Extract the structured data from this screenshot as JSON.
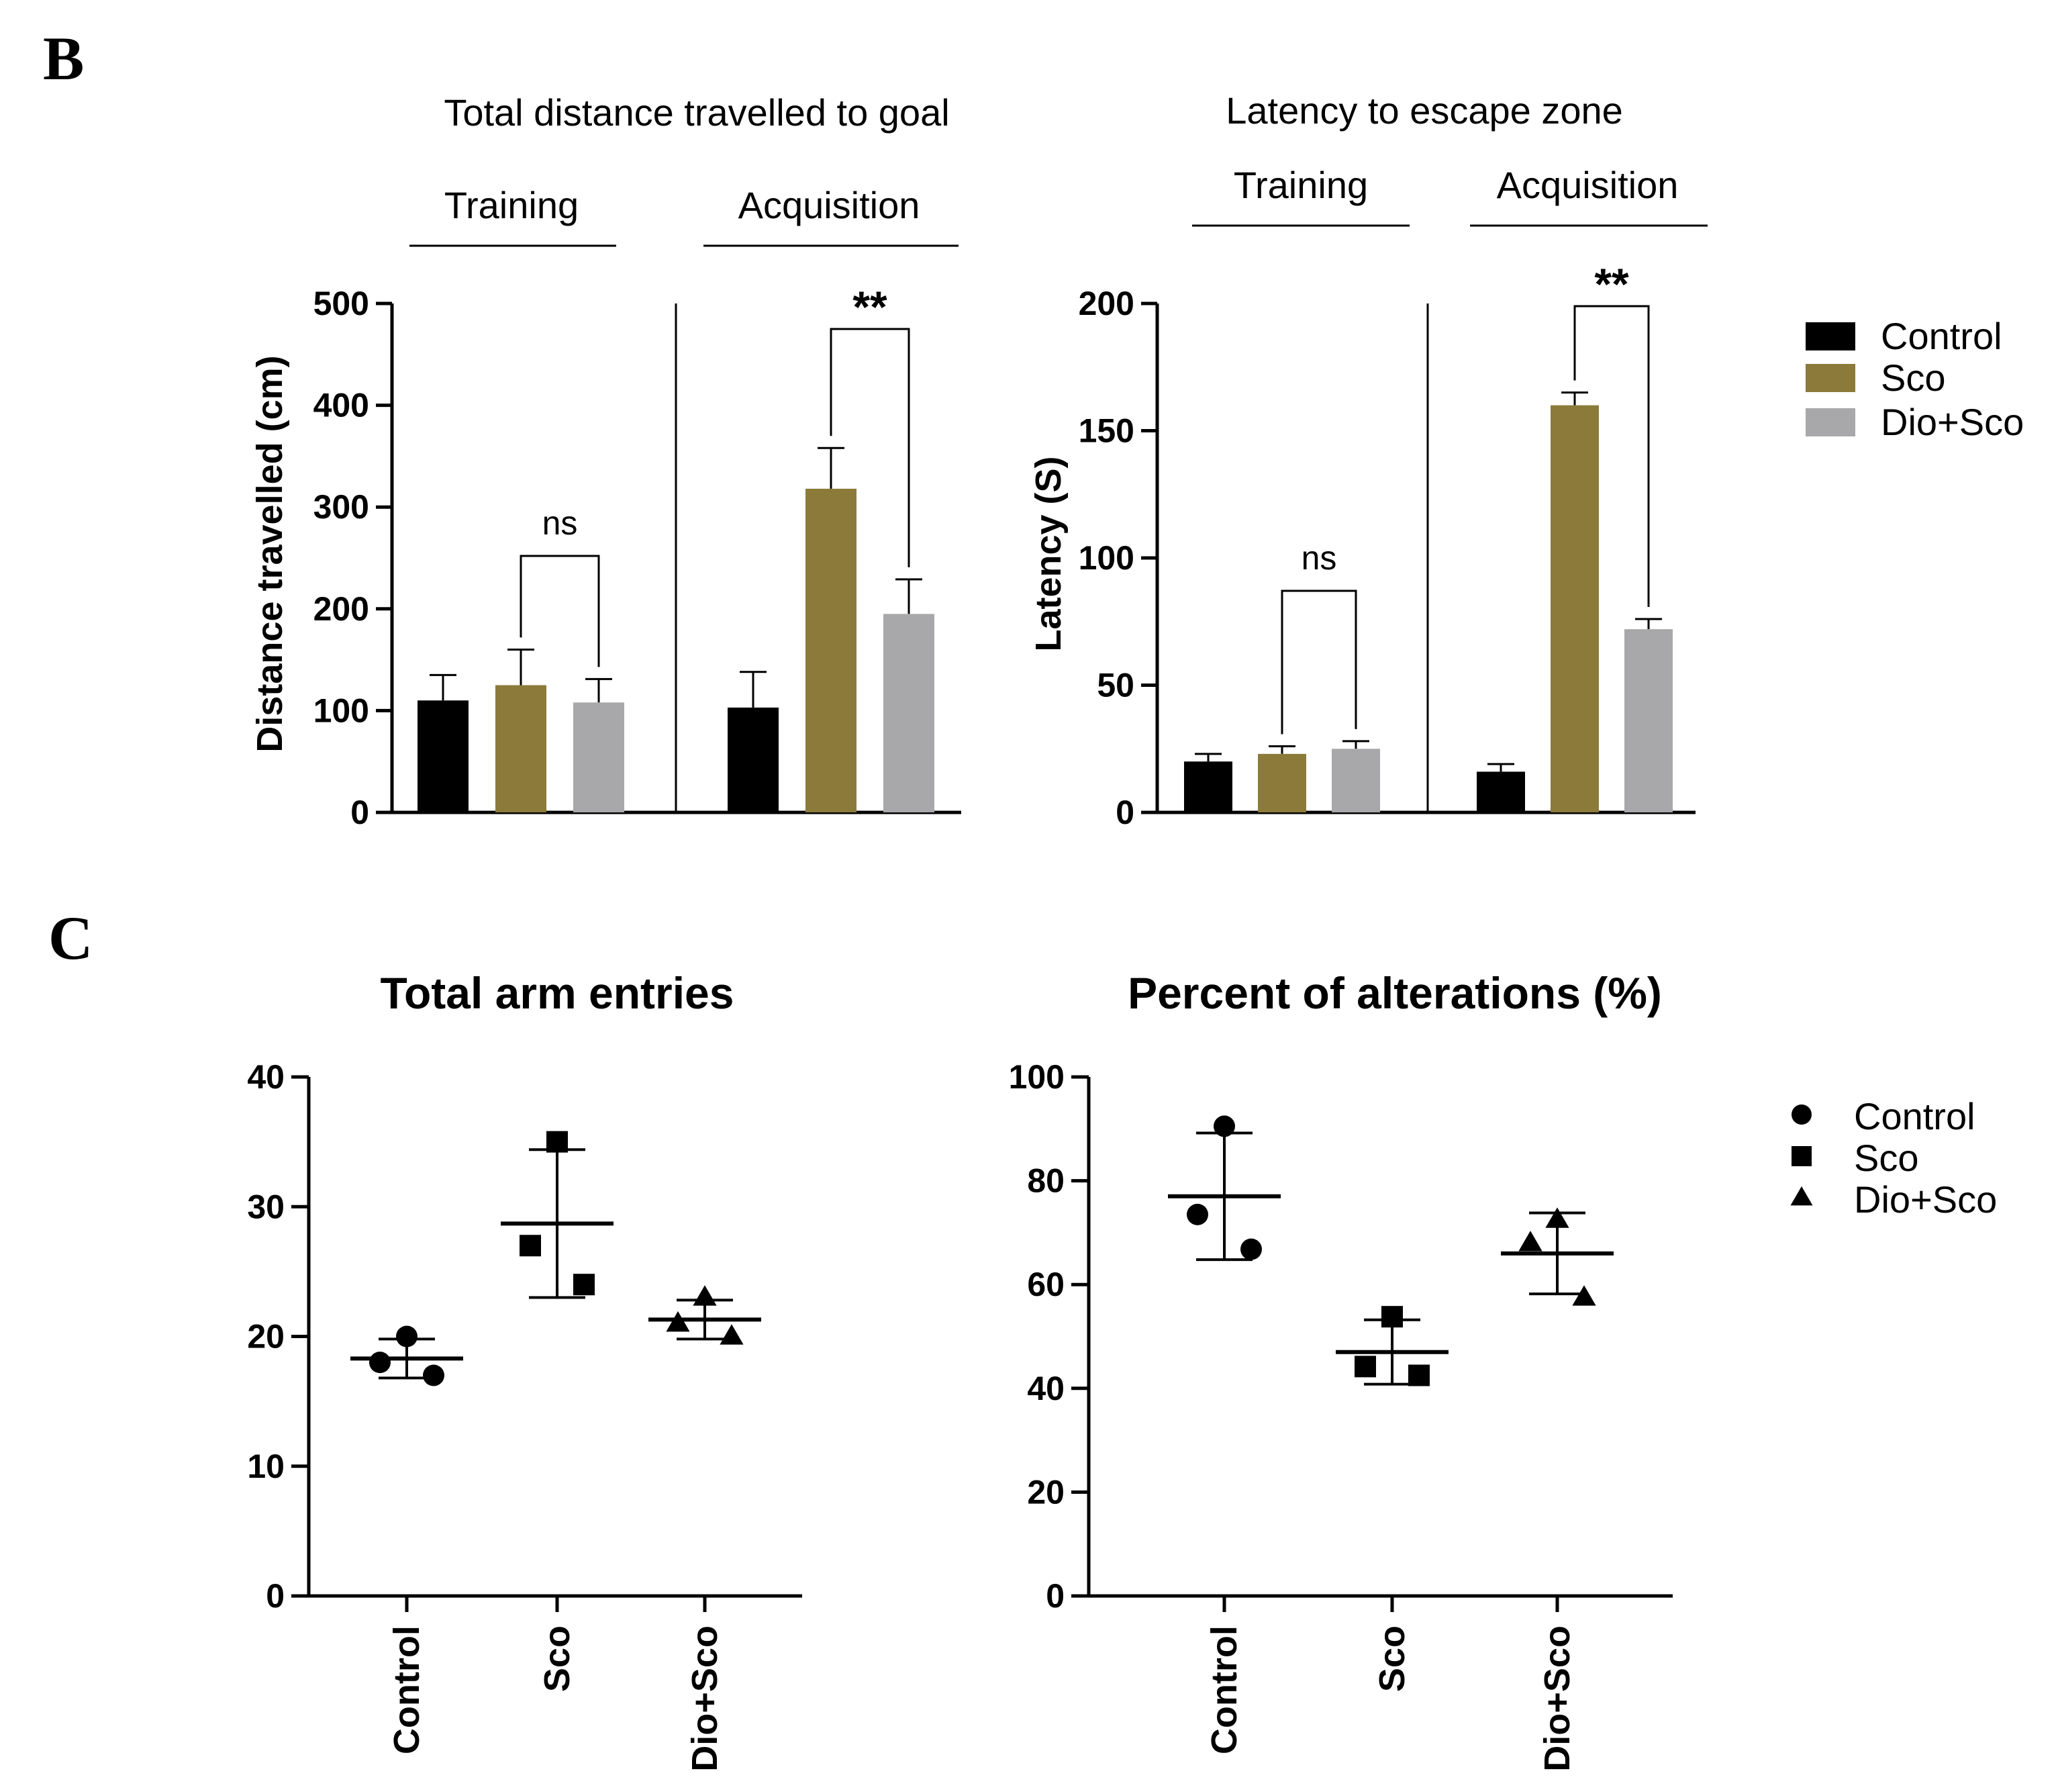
{
  "panel_letters": {
    "b": "B",
    "c": "C"
  },
  "legend_b": [
    {
      "label": "Control",
      "color": "#000000"
    },
    {
      "label": "Sco",
      "color": "#8B7A3A"
    },
    {
      "label": "Dio+Sco",
      "color": "#A8A8AB"
    }
  ],
  "legend_c": [
    {
      "label": "Control",
      "marker": "circle"
    },
    {
      "label": "Sco",
      "marker": "square"
    },
    {
      "label": "Dio+Sco",
      "marker": "triangle"
    }
  ],
  "chart_data": [
    {
      "type": "bar",
      "title": "Total distance travelled to goal",
      "ylabel": "Distance travelled (cm)",
      "ylim": [
        0,
        500
      ],
      "yticks": [
        0,
        100,
        200,
        300,
        400,
        500
      ],
      "groups": [
        "Training",
        "Acquisition"
      ],
      "series": [
        {
          "name": "Control",
          "color": "#000000",
          "values": [
            110,
            103
          ],
          "errors": [
            25,
            35
          ]
        },
        {
          "name": "Sco",
          "color": "#8B7A3A",
          "values": [
            125,
            318
          ],
          "errors": [
            35,
            40
          ]
        },
        {
          "name": "Dio+Sco",
          "color": "#A8A8AB",
          "values": [
            108,
            195
          ],
          "errors": [
            23,
            34
          ]
        }
      ],
      "significance": [
        {
          "group": "Training",
          "between": [
            "Sco",
            "Dio+Sco"
          ],
          "label": "ns"
        },
        {
          "group": "Acquisition",
          "between": [
            "Sco",
            "Dio+Sco"
          ],
          "label": "**"
        }
      ]
    },
    {
      "type": "bar",
      "title": "Latency to escape zone",
      "ylabel": "Latency (S)",
      "ylim": [
        0,
        200
      ],
      "yticks": [
        0,
        50,
        100,
        150,
        200
      ],
      "groups": [
        "Training",
        "Acquisition"
      ],
      "series": [
        {
          "name": "Control",
          "color": "#000000",
          "values": [
            20,
            16
          ],
          "errors": [
            3,
            3
          ]
        },
        {
          "name": "Sco",
          "color": "#8B7A3A",
          "values": [
            23,
            160
          ],
          "errors": [
            3,
            5
          ]
        },
        {
          "name": "Dio+Sco",
          "color": "#A8A8AB",
          "values": [
            25,
            72
          ],
          "errors": [
            3,
            4
          ]
        }
      ],
      "significance": [
        {
          "group": "Training",
          "between": [
            "Sco",
            "Dio+Sco"
          ],
          "label": "ns"
        },
        {
          "group": "Acquisition",
          "between": [
            "Sco",
            "Dio+Sco"
          ],
          "label": "**"
        }
      ]
    },
    {
      "type": "scatter",
      "title": "Total arm entries",
      "ylim": [
        0,
        40
      ],
      "yticks": [
        0,
        10,
        20,
        30,
        40
      ],
      "categories": [
        "Control",
        "Sco",
        "Dio+Sco"
      ],
      "groups": [
        {
          "name": "Control",
          "marker": "circle",
          "points": [
            18,
            20,
            17
          ],
          "mean": 18.3,
          "sd_upper": 19.8,
          "sd_lower": 16.8
        },
        {
          "name": "Sco",
          "marker": "square",
          "points": [
            35,
            27,
            24
          ],
          "mean": 28.7,
          "sd_upper": 34.4,
          "sd_lower": 23.0
        },
        {
          "name": "Dio+Sco",
          "marker": "triangle",
          "points": [
            21,
            23,
            20
          ],
          "mean": 21.3,
          "sd_upper": 22.8,
          "sd_lower": 19.8
        }
      ]
    },
    {
      "type": "scatter",
      "title": "Percent of alterations (%)",
      "ylim": [
        0,
        100
      ],
      "yticks": [
        0,
        20,
        40,
        60,
        80,
        100
      ],
      "categories": [
        "Control",
        "Sco",
        "Dio+Sco"
      ],
      "groups": [
        {
          "name": "Control",
          "marker": "circle",
          "points": [
            90.5,
            73.5,
            66.8
          ],
          "mean": 77,
          "sd_upper": 89.2,
          "sd_lower": 64.8
        },
        {
          "name": "Sco",
          "marker": "square",
          "points": [
            53.8,
            44.2,
            42.5
          ],
          "mean": 47,
          "sd_upper": 53.2,
          "sd_lower": 40.8
        },
        {
          "name": "Dio+Sco",
          "marker": "triangle",
          "points": [
            72.5,
            68,
            57.5
          ],
          "mean": 66,
          "sd_upper": 73.8,
          "sd_lower": 58.2
        }
      ]
    }
  ]
}
